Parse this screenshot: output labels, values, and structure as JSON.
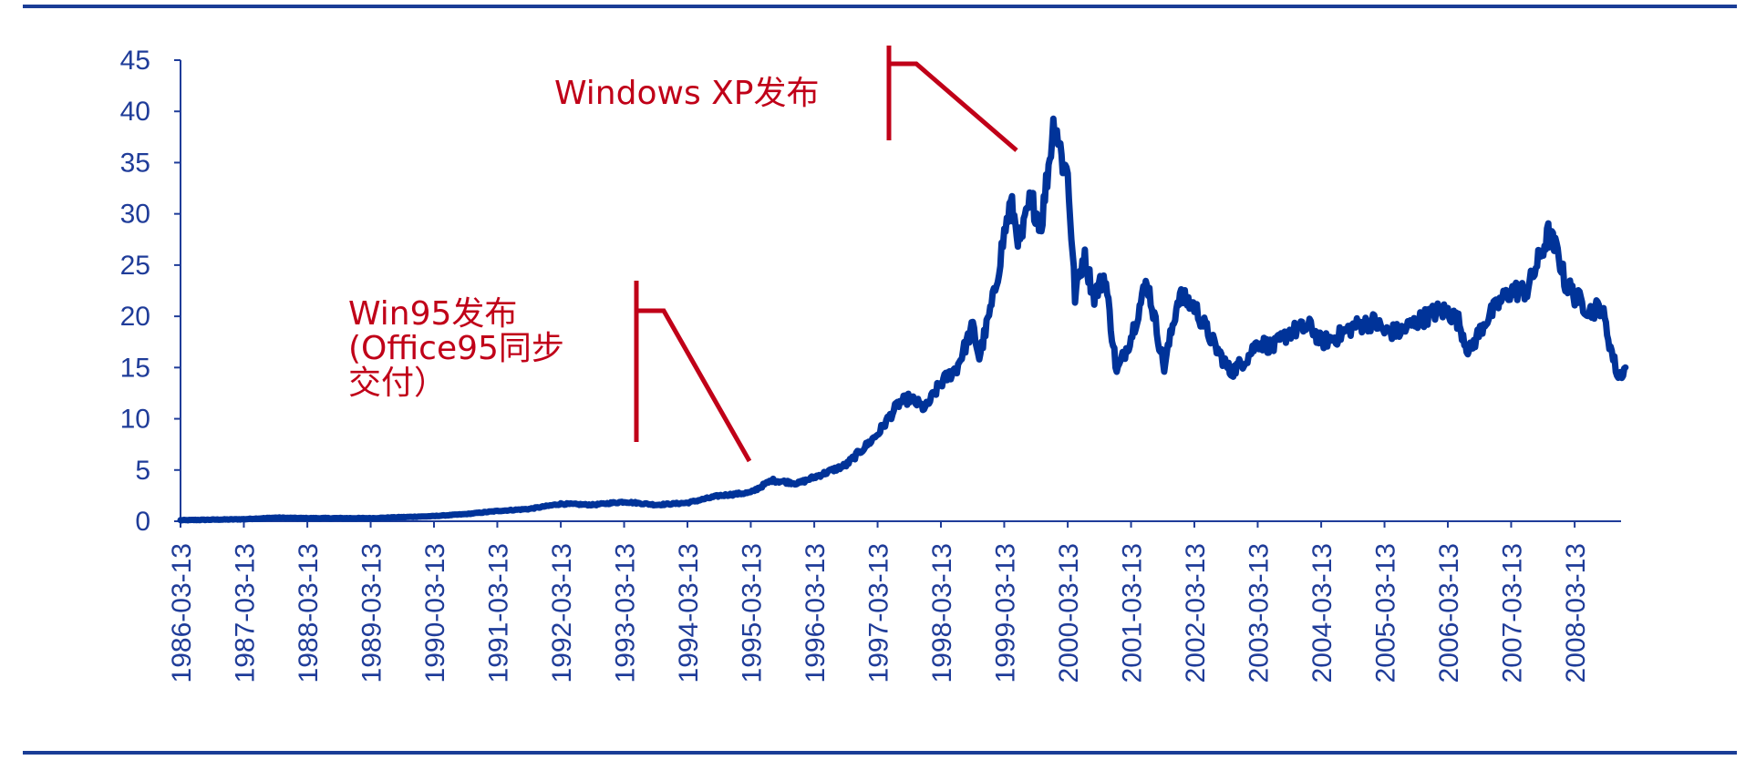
{
  "chart_data": {
    "type": "line",
    "title": "",
    "xlabel": "",
    "ylabel": "",
    "ylim": [
      0,
      45
    ],
    "y_ticks": [
      "0",
      "5",
      "10",
      "15",
      "20",
      "25",
      "30",
      "35",
      "40",
      "45"
    ],
    "x_ticks": [
      "1986-03-13",
      "1987-03-13",
      "1988-03-13",
      "1989-03-13",
      "1990-03-13",
      "1991-03-13",
      "1992-03-13",
      "1993-03-13",
      "1994-03-13",
      "1995-03-13",
      "1996-03-13",
      "1997-03-13",
      "1998-03-13",
      "1999-03-13",
      "2000-03-13",
      "2001-03-13",
      "2002-03-13",
      "2003-03-13",
      "2004-03-13",
      "2005-03-13",
      "2006-03-13",
      "2007-03-13",
      "2008-03-13"
    ],
    "x_range": [
      "1986-03-13",
      "2008-12-31"
    ],
    "grid": false,
    "legend": "none",
    "series": [
      {
        "color": "#003399",
        "points": [
          [
            "1986-03-13",
            0.1
          ],
          [
            "1986-09-13",
            0.15
          ],
          [
            "1987-03-13",
            0.2
          ],
          [
            "1987-09-13",
            0.35
          ],
          [
            "1988-03-13",
            0.3
          ],
          [
            "1988-09-13",
            0.3
          ],
          [
            "1989-03-13",
            0.3
          ],
          [
            "1989-09-13",
            0.4
          ],
          [
            "1990-03-13",
            0.5
          ],
          [
            "1990-09-13",
            0.7
          ],
          [
            "1991-03-13",
            1.0
          ],
          [
            "1991-09-13",
            1.2
          ],
          [
            "1992-03-13",
            1.7
          ],
          [
            "1992-09-13",
            1.6
          ],
          [
            "1993-03-13",
            1.9
          ],
          [
            "1993-09-13",
            1.6
          ],
          [
            "1994-03-13",
            1.8
          ],
          [
            "1994-09-13",
            2.5
          ],
          [
            "1995-03-13",
            2.8
          ],
          [
            "1995-07-13",
            4.0
          ],
          [
            "1995-12-13",
            3.7
          ],
          [
            "1996-03-13",
            4.3
          ],
          [
            "1996-09-13",
            5.5
          ],
          [
            "1997-01-13",
            7.5
          ],
          [
            "1997-03-13",
            8.5
          ],
          [
            "1997-07-13",
            11.5
          ],
          [
            "1997-09-13",
            12.0
          ],
          [
            "1997-12-13",
            11.0
          ],
          [
            "1998-03-13",
            13.5
          ],
          [
            "1998-06-13",
            15.0
          ],
          [
            "1998-09-13",
            19.0
          ],
          [
            "1998-10-20",
            16.0
          ],
          [
            "1999-01-13",
            22.0
          ],
          [
            "1999-03-13",
            28.0
          ],
          [
            "1999-04-20",
            31.0
          ],
          [
            "1999-06-13",
            27.0
          ],
          [
            "1999-08-13",
            31.5
          ],
          [
            "1999-10-13",
            29.0
          ],
          [
            "1999-12-28",
            39.5
          ],
          [
            "2000-02-13",
            35.0
          ],
          [
            "2000-03-13",
            34.0
          ],
          [
            "2000-04-24",
            22.0
          ],
          [
            "2000-06-13",
            26.0
          ],
          [
            "2000-08-13",
            22.0
          ],
          [
            "2000-10-13",
            24.0
          ],
          [
            "2000-12-20",
            14.5
          ],
          [
            "2001-03-13",
            18.0
          ],
          [
            "2001-06-13",
            23.5
          ],
          [
            "2001-09-20",
            15.0
          ],
          [
            "2001-12-13",
            22.0
          ],
          [
            "2002-03-13",
            21.0
          ],
          [
            "2002-07-13",
            17.0
          ],
          [
            "2002-10-10",
            14.5
          ],
          [
            "2003-01-13",
            16.0
          ],
          [
            "2003-03-13",
            17.5
          ],
          [
            "2003-06-13",
            17.0
          ],
          [
            "2003-09-13",
            18.5
          ],
          [
            "2004-01-13",
            19.0
          ],
          [
            "2004-03-13",
            17.5
          ],
          [
            "2004-06-13",
            18.0
          ],
          [
            "2004-09-13",
            19.0
          ],
          [
            "2005-01-13",
            19.5
          ],
          [
            "2005-03-13",
            18.5
          ],
          [
            "2005-06-13",
            18.5
          ],
          [
            "2005-09-13",
            19.5
          ],
          [
            "2006-01-13",
            20.5
          ],
          [
            "2006-03-13",
            20.5
          ],
          [
            "2006-05-13",
            19.5
          ],
          [
            "2006-07-13",
            16.5
          ],
          [
            "2006-10-13",
            19.5
          ],
          [
            "2007-01-13",
            21.5
          ],
          [
            "2007-03-13",
            22.5
          ],
          [
            "2007-06-13",
            22.5
          ],
          [
            "2007-10-13",
            28.0
          ],
          [
            "2007-12-13",
            26.0
          ],
          [
            "2008-01-13",
            23.5
          ],
          [
            "2008-03-13",
            22.0
          ],
          [
            "2008-06-13",
            20.5
          ],
          [
            "2008-08-13",
            21.0
          ],
          [
            "2008-10-13",
            16.5
          ],
          [
            "2008-11-20",
            14.0
          ],
          [
            "2008-12-31",
            15.0
          ]
        ]
      }
    ],
    "annotations": [
      {
        "lines": [
          "Win95发布",
          "(Office95同步",
          "交付）"
        ],
        "pointer_x": "1995-03-13",
        "pointer_y": 5.5
      },
      {
        "lines": [
          "Windows XP发布"
        ],
        "pointer_x": "1999-06-13",
        "pointer_y": 36.0
      }
    ]
  },
  "colors": {
    "line": "#003399",
    "axis": "#1f3c99",
    "annotation": "#c00018",
    "rule": "#1a3d96"
  }
}
